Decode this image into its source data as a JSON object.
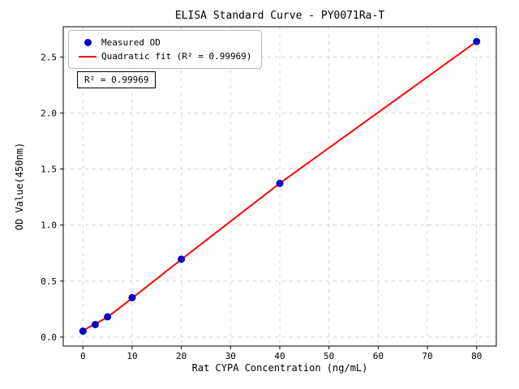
{
  "figure": {
    "background": "#ffffff"
  },
  "chart_data": {
    "type": "scatter",
    "title": "ELISA Standard Curve - PY0071Ra-T",
    "xlabel": "Rat CYPA Concentration (ng/mL)",
    "ylabel": "OD Value(450nm)",
    "xlim": [
      -4,
      84
    ],
    "ylim": [
      -0.08,
      2.77
    ],
    "x_ticks": [
      0,
      10,
      20,
      30,
      40,
      50,
      60,
      70,
      80
    ],
    "x_tick_labels": [
      "0",
      "10",
      "20",
      "30",
      "40",
      "50",
      "60",
      "70",
      "80"
    ],
    "y_ticks": [
      0.0,
      0.5,
      1.0,
      1.5,
      2.0,
      2.5
    ],
    "y_tick_labels": [
      "0.0",
      "0.5",
      "1.0",
      "1.5",
      "2.0",
      "2.5"
    ],
    "grid": true,
    "grid_color": "#cccccc",
    "legend_position": "upper-left",
    "series": [
      {
        "name": "Measured OD",
        "type": "scatter",
        "color": "#0000cd",
        "x": [
          0,
          2.5,
          5,
          10,
          20,
          40,
          80
        ],
        "y": [
          0.053,
          0.112,
          0.181,
          0.352,
          0.695,
          1.372,
          2.638
        ]
      },
      {
        "name": "Quadratic fit (R² = 0.99969)",
        "type": "line",
        "color": "#ff0000",
        "x": [
          0,
          2.5,
          5,
          10,
          20,
          40,
          80
        ],
        "y": [
          0.058,
          0.118,
          0.178,
          0.348,
          0.693,
          1.373,
          2.638
        ]
      }
    ],
    "annotation": "R² = 0.99969"
  }
}
